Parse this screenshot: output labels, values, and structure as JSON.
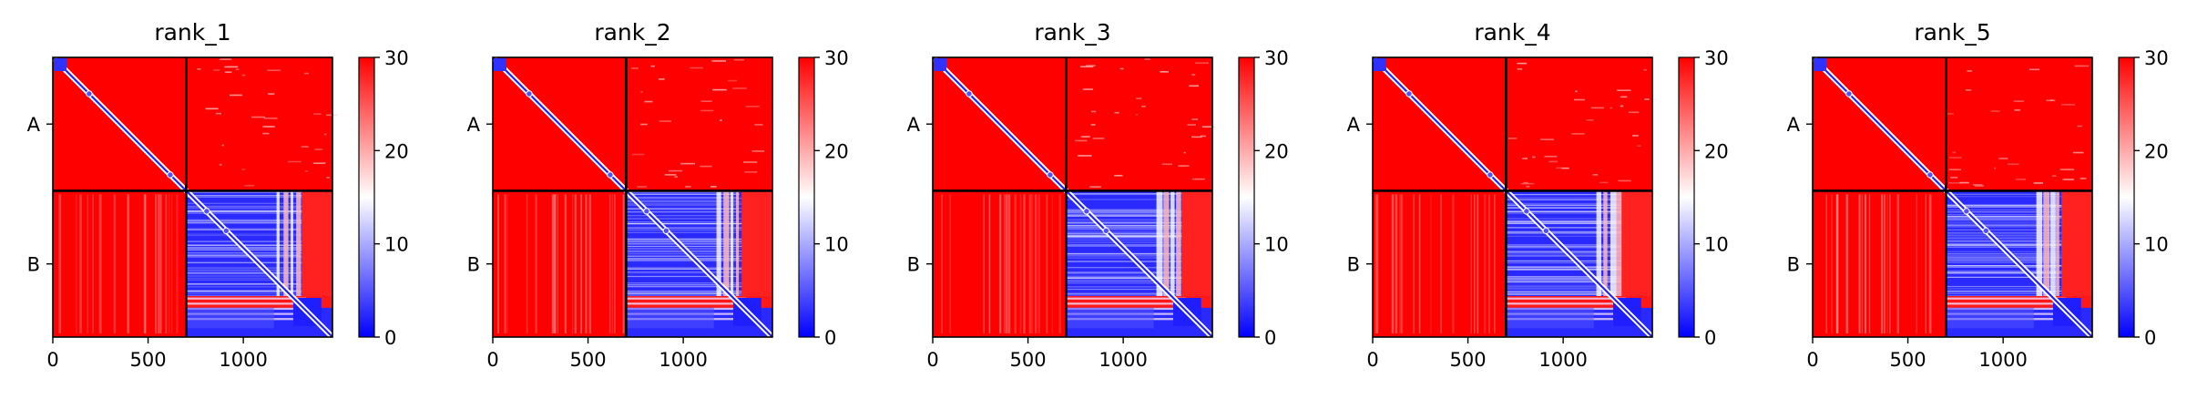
{
  "chart_data": {
    "type": "heatmap",
    "x_ticks": [
      0,
      500,
      1000
    ],
    "x_range": [
      0,
      1468
    ],
    "y_range": [
      0,
      1468
    ],
    "chain_boundary": 700,
    "y_ticks": [
      {
        "label": "A",
        "value": 350
      },
      {
        "label": "B",
        "value": 1084
      }
    ],
    "colorbar": {
      "min": 0,
      "max": 30,
      "ticks": [
        0,
        10,
        20,
        30
      ],
      "colormap": [
        "#0000ff",
        "#ffffff",
        "#ff0000"
      ]
    },
    "panels": [
      {
        "title": "rank_1"
      },
      {
        "title": "rank_2"
      },
      {
        "title": "rank_3"
      },
      {
        "title": "rank_4"
      },
      {
        "title": "rank_5"
      }
    ]
  }
}
